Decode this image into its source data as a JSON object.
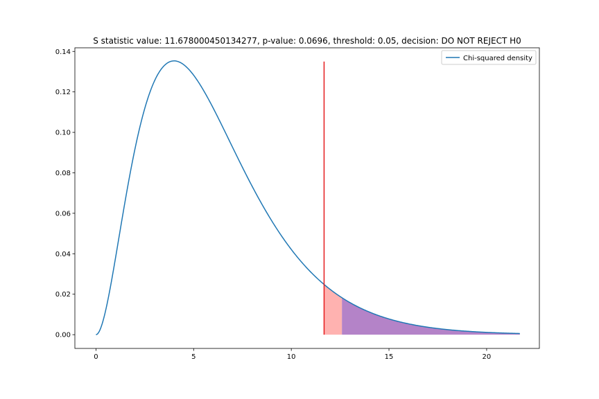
{
  "chart_data": {
    "type": "line",
    "title": "S statistic value: 11.678000450134277, p-value: 0.0696, threshold: 0.05, decision: DO NOT REJECT H0",
    "xlabel": "",
    "ylabel": "",
    "xlim": [
      -1.08,
      22.7
    ],
    "ylim": [
      -0.0068,
      0.1418
    ],
    "x_ticks": [
      0,
      5,
      10,
      15,
      20
    ],
    "x_tick_labels": [
      "0",
      "5",
      "10",
      "15",
      "20"
    ],
    "y_ticks": [
      0.0,
      0.02,
      0.04,
      0.06,
      0.08,
      0.1,
      0.12,
      0.14
    ],
    "y_tick_labels": [
      "0.00",
      "0.02",
      "0.04",
      "0.06",
      "0.08",
      "0.10",
      "0.12",
      "0.14"
    ],
    "grid": false,
    "legend_position": "top-right",
    "series": [
      {
        "name": "Chi-squared density",
        "degrees_of_freedom": 6,
        "x_range": [
          0,
          21.7
        ],
        "color": "#1f77b4"
      }
    ],
    "statistic_line": {
      "x": 11.678,
      "y_top": 0.135,
      "color": "#e41a1c"
    },
    "shaded_regions": [
      {
        "x_from": 11.678,
        "x_to": 12.592,
        "color": "#ff9896",
        "opacity": 0.75
      },
      {
        "x_from": 12.592,
        "x_to": 21.7,
        "color": "#9b59b6",
        "opacity": 0.75
      }
    ]
  }
}
